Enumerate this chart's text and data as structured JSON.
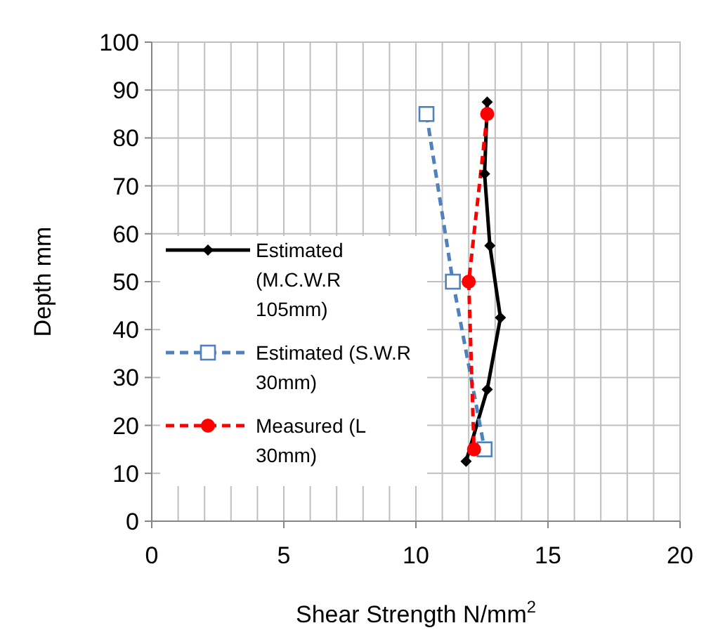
{
  "chart_data": {
    "type": "line",
    "xlabel": "Shear Strength N/mm$^{2}$",
    "ylabel": "Depth mm",
    "xlim": [
      0,
      20
    ],
    "xticks": [
      0,
      {
        "value": 1,
        "label": null
      },
      {
        "value": 2,
        "label": null
      },
      {
        "value": 3,
        "label": null
      },
      {
        "value": 4,
        "label": null
      },
      5,
      {
        "value": 6,
        "label": null
      },
      {
        "value": 7,
        "label": null
      },
      {
        "value": 8,
        "label": null
      },
      {
        "value": 9,
        "label": null
      },
      10,
      {
        "value": 11,
        "label": null
      },
      {
        "value": 12,
        "label": null
      },
      {
        "value": 13,
        "label": null
      },
      {
        "value": 14,
        "label": null
      },
      15,
      {
        "value": 16,
        "label": null
      },
      {
        "value": 17,
        "label": null
      },
      {
        "value": 18,
        "label": null
      },
      {
        "value": 19,
        "label": null
      },
      20
    ],
    "ylim": [
      0,
      100
    ],
    "yticks": [
      0,
      10,
      20,
      30,
      40,
      50,
      60,
      70,
      80,
      90,
      100
    ],
    "grid": true,
    "legend": "left",
    "series": [
      {
        "name": "Estimated (M.C.W.R 105mm)",
        "color": "#000000",
        "marker": "diamond",
        "line_style": "solid",
        "x": [
          12.7,
          12.6,
          12.8,
          13.2,
          12.7,
          11.9
        ],
        "values": [
          87.5,
          72.5,
          57.5,
          42.5,
          27.5,
          12.5
        ]
      },
      {
        "name": "Estimated (S.W.R 30mm)",
        "color": "#4f81bd",
        "marker": "square",
        "line_style": "dashed",
        "x": [
          10.4,
          11.4,
          12.6
        ],
        "values": [
          85,
          50,
          15
        ]
      },
      {
        "name": "Measured (L 30mm)",
        "color": "#ff0000",
        "marker": "circle",
        "line_style": "dashed",
        "x": [
          12.7,
          12.0,
          12.2
        ],
        "values": [
          85,
          50,
          15
        ]
      }
    ]
  }
}
